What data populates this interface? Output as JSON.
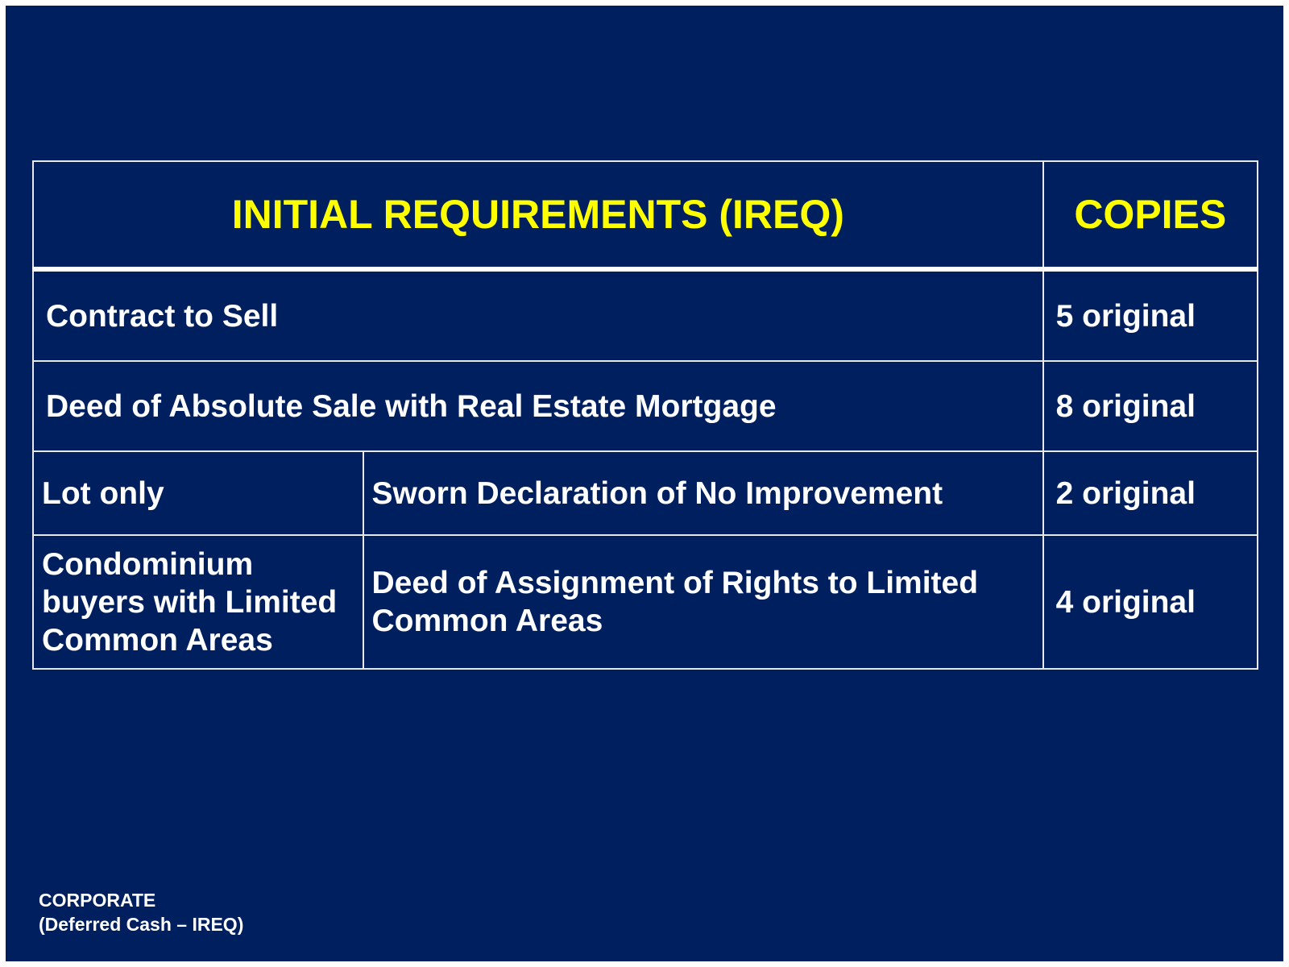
{
  "table": {
    "header": {
      "requirements": "INITIAL REQUIREMENTS (IREQ)",
      "copies": "COPIES"
    },
    "rows": [
      {
        "document": "Contract to Sell",
        "copies": "5 original"
      },
      {
        "document": "Deed of Absolute Sale with Real Estate Mortgage",
        "copies": "8 original"
      },
      {
        "condition": "Lot only",
        "document": "Sworn Declaration of No Improvement",
        "copies": "2 original"
      },
      {
        "condition": "Condominium buyers with Limited Common Areas",
        "document": "Deed of Assignment of Rights to Limited Common Areas",
        "copies": "4 original"
      }
    ]
  },
  "footer": {
    "line1": "CORPORATE",
    "line2": "(Deferred Cash – IREQ)"
  },
  "colors": {
    "background": "#001f5f",
    "header_text": "#ffff00",
    "body_text": "#ffffff"
  }
}
